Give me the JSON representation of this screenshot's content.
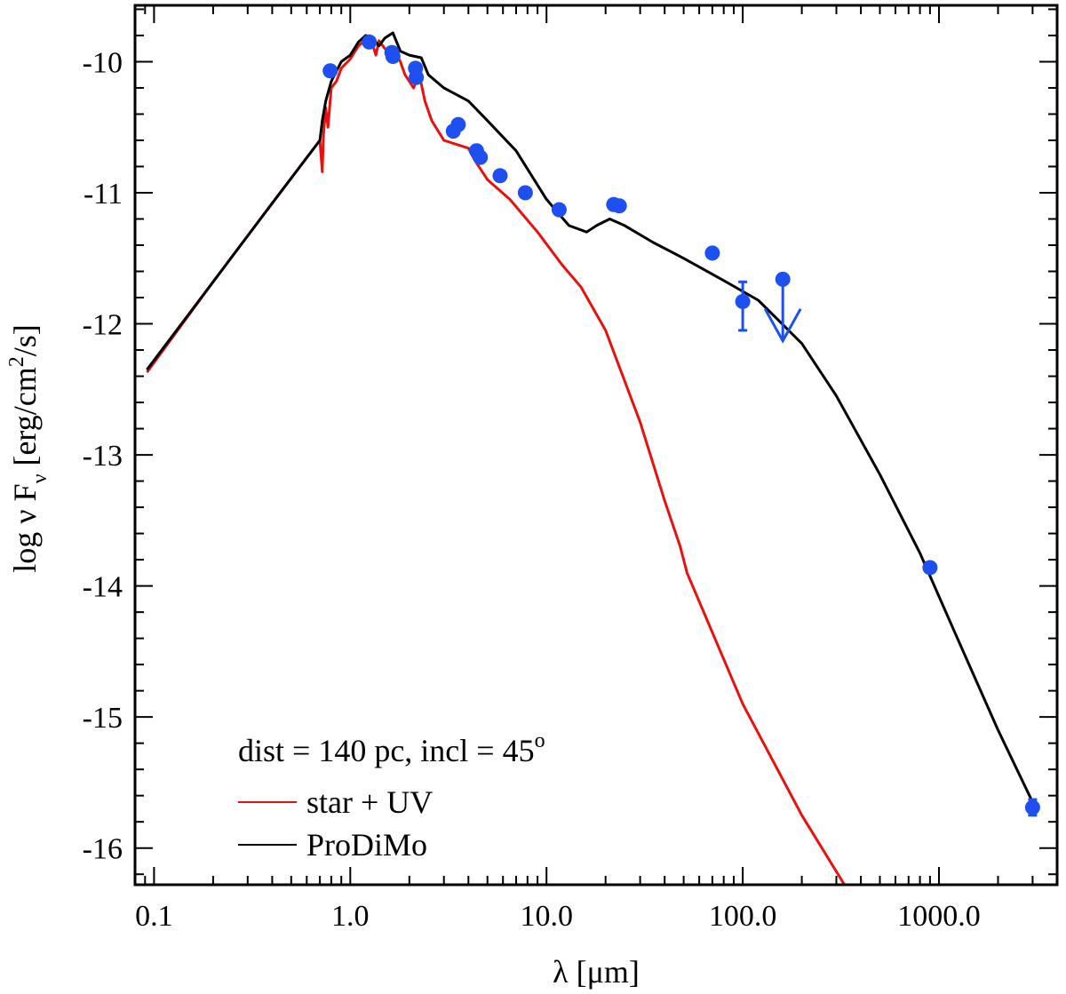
{
  "chart_data": {
    "type": "line",
    "title": "",
    "xscale": "log",
    "xlim": [
      0.08,
      4000
    ],
    "ylim": [
      -16.28,
      -9.57
    ],
    "xlabel": "λ [μm]",
    "ylabel": "log ν Fν [erg/cm²/s]",
    "ylabel_parts": {
      "pre": "log ",
      "nu": "ν",
      "flux_var": " F",
      "flux_sub": "ν",
      "units_pre": " [erg/cm",
      "units_sup": "2",
      "units_post": "/s]"
    },
    "xticks": [
      {
        "value": 0.1,
        "label": "0.1"
      },
      {
        "value": 1,
        "label": "1.0"
      },
      {
        "value": 10,
        "label": "10.0"
      },
      {
        "value": 100,
        "label": "100.0"
      },
      {
        "value": 1000,
        "label": "1000.0"
      }
    ],
    "yticks": [
      {
        "value": -10,
        "label": "-10"
      },
      {
        "value": -11,
        "label": "-11"
      },
      {
        "value": -12,
        "label": "-12"
      },
      {
        "value": -13,
        "label": "-13"
      },
      {
        "value": -14,
        "label": "-14"
      },
      {
        "value": -15,
        "label": "-15"
      },
      {
        "value": -16,
        "label": "-16"
      }
    ],
    "annotation": {
      "text": "dist = 140 pc,  incl = 45",
      "superscript": "o"
    },
    "legend": {
      "position": "bottom-left",
      "entries": [
        {
          "label": "star + UV",
          "color": "#e8110f"
        },
        {
          "label": "ProDiMo",
          "color": "#000000"
        }
      ]
    },
    "series": [
      {
        "name": "star + UV",
        "color": "#e8110f",
        "points": [
          [
            0.092,
            -12.37
          ],
          [
            0.2,
            -11.68
          ],
          [
            0.4,
            -11.08
          ],
          [
            0.7,
            -10.6
          ],
          [
            0.72,
            -10.84
          ],
          [
            0.73,
            -10.56
          ],
          [
            0.75,
            -10.35
          ],
          [
            0.77,
            -10.5
          ],
          [
            0.8,
            -10.2
          ],
          [
            0.85,
            -10.15
          ],
          [
            0.9,
            -10.05
          ],
          [
            1.0,
            -9.98
          ],
          [
            1.1,
            -9.88
          ],
          [
            1.2,
            -9.83
          ],
          [
            1.3,
            -9.87
          ],
          [
            1.35,
            -9.95
          ],
          [
            1.4,
            -9.84
          ],
          [
            1.5,
            -9.9
          ],
          [
            1.7,
            -9.93
          ],
          [
            1.8,
            -10.0
          ],
          [
            1.9,
            -10.1
          ],
          [
            2.0,
            -10.15
          ],
          [
            2.1,
            -10.2
          ],
          [
            2.25,
            -10.1
          ],
          [
            2.4,
            -10.3
          ],
          [
            2.6,
            -10.45
          ],
          [
            3.0,
            -10.6
          ],
          [
            4.0,
            -10.66
          ],
          [
            4.3,
            -10.75
          ],
          [
            5.0,
            -10.9
          ],
          [
            6.5,
            -11.05
          ],
          [
            9.0,
            -11.3
          ],
          [
            12.0,
            -11.55
          ],
          [
            15.0,
            -11.72
          ],
          [
            20.0,
            -12.05
          ],
          [
            30.0,
            -12.75
          ],
          [
            40.0,
            -13.35
          ],
          [
            48.0,
            -13.7
          ],
          [
            52.0,
            -13.9
          ],
          [
            100.0,
            -14.9
          ],
          [
            200.0,
            -15.75
          ],
          [
            330.0,
            -16.28
          ]
        ]
      },
      {
        "name": "ProDiMo",
        "color": "#000000",
        "points": [
          [
            0.092,
            -12.35
          ],
          [
            0.2,
            -11.68
          ],
          [
            0.4,
            -11.08
          ],
          [
            0.7,
            -10.6
          ],
          [
            0.72,
            -10.45
          ],
          [
            0.75,
            -10.3
          ],
          [
            0.8,
            -10.15
          ],
          [
            0.9,
            -10.0
          ],
          [
            1.0,
            -9.95
          ],
          [
            1.1,
            -9.85
          ],
          [
            1.2,
            -9.8
          ],
          [
            1.3,
            -9.82
          ],
          [
            1.4,
            -9.88
          ],
          [
            1.5,
            -9.82
          ],
          [
            1.65,
            -9.78
          ],
          [
            1.8,
            -9.92
          ],
          [
            2.0,
            -9.95
          ],
          [
            2.3,
            -9.97
          ],
          [
            2.5,
            -10.1
          ],
          [
            3.0,
            -10.2
          ],
          [
            4.0,
            -10.3
          ],
          [
            5.0,
            -10.45
          ],
          [
            7.0,
            -10.68
          ],
          [
            10.0,
            -11.05
          ],
          [
            13.0,
            -11.25
          ],
          [
            16.0,
            -11.3
          ],
          [
            18.0,
            -11.25
          ],
          [
            21.0,
            -11.2
          ],
          [
            25.0,
            -11.25
          ],
          [
            35.0,
            -11.38
          ],
          [
            50.0,
            -11.5
          ],
          [
            80.0,
            -11.67
          ],
          [
            120.0,
            -11.82
          ],
          [
            200.0,
            -12.15
          ],
          [
            300.0,
            -12.55
          ],
          [
            500.0,
            -13.15
          ],
          [
            800.0,
            -13.75
          ],
          [
            1200.0,
            -14.35
          ],
          [
            2000.0,
            -15.1
          ],
          [
            3000.0,
            -15.65
          ]
        ]
      }
    ],
    "observations": {
      "color": "#1e4ff0",
      "points": [
        [
          0.79,
          -10.07
        ],
        [
          1.25,
          -9.85
        ],
        [
          1.63,
          -9.93
        ],
        [
          1.65,
          -9.96
        ],
        [
          2.15,
          -10.05
        ],
        [
          2.17,
          -10.12
        ],
        [
          3.35,
          -10.53
        ],
        [
          3.55,
          -10.48
        ],
        [
          4.4,
          -10.68
        ],
        [
          4.6,
          -10.73
        ],
        [
          5.8,
          -10.87
        ],
        [
          7.8,
          -11.0
        ],
        [
          11.6,
          -11.13
        ],
        [
          22.0,
          -11.09
        ],
        [
          23.5,
          -11.1
        ],
        [
          70.0,
          -11.46
        ],
        [
          100.0,
          -11.83
        ],
        [
          160.0,
          -11.66
        ],
        [
          900.0,
          -13.86
        ],
        [
          3000.0,
          -15.69
        ]
      ],
      "errorbars": [
        {
          "x": 100.0,
          "y": -11.83,
          "low": -12.05,
          "high": -11.68
        },
        {
          "x": 3000.0,
          "y": -15.69,
          "low": -15.75,
          "high": -15.63
        }
      ],
      "upper_limits": [
        {
          "x": 160.0,
          "y": -11.66,
          "to": -12.13
        }
      ]
    }
  }
}
